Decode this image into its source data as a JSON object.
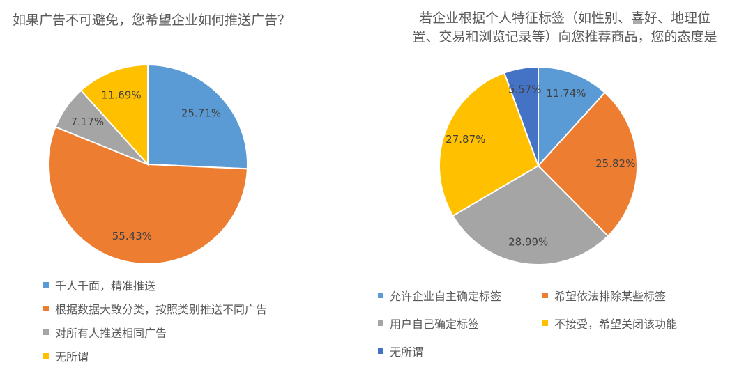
{
  "chart_data": [
    {
      "type": "pie",
      "title": "如果广告不可避免，您希望企业如何推送广告？",
      "slices": [
        {
          "label": "千人千面，精准推送",
          "value": 25.71,
          "display": "25.71%",
          "color": "#5b9bd5"
        },
        {
          "label": "根据数据大致分类，按照类别推送不同广告",
          "value": 55.43,
          "display": "55.43%",
          "color": "#ed7d31"
        },
        {
          "label": "对所有人推送相同广告",
          "value": 7.17,
          "display": "7.17%",
          "color": "#a5a5a5"
        },
        {
          "label": "无所谓",
          "value": 11.69,
          "display": "11.69%",
          "color": "#ffc000"
        }
      ],
      "legend_position": "bottom"
    },
    {
      "type": "pie",
      "title_lines": [
        "若企业根据个人特征标签（如性别、喜好、地理位",
        "置、交易和浏览记录等）向您推荐商品，您的态度是"
      ],
      "slices": [
        {
          "label": "允许企业自主确定标签",
          "value": 11.74,
          "display": "11.74%",
          "color": "#5b9bd5"
        },
        {
          "label": "希望依法排除某些标签",
          "value": 25.82,
          "display": "25.82%",
          "color": "#ed7d31"
        },
        {
          "label": "用户自己确定标签",
          "value": 28.99,
          "display": "28.99%",
          "color": "#a5a5a5"
        },
        {
          "label": "不接受，希望关闭该功能",
          "value": 27.87,
          "display": "27.87%",
          "color": "#ffc000"
        },
        {
          "label": "无所谓",
          "value": 5.57,
          "display": "5.57%",
          "color": "#4472c4"
        }
      ],
      "legend_position": "bottom"
    }
  ]
}
